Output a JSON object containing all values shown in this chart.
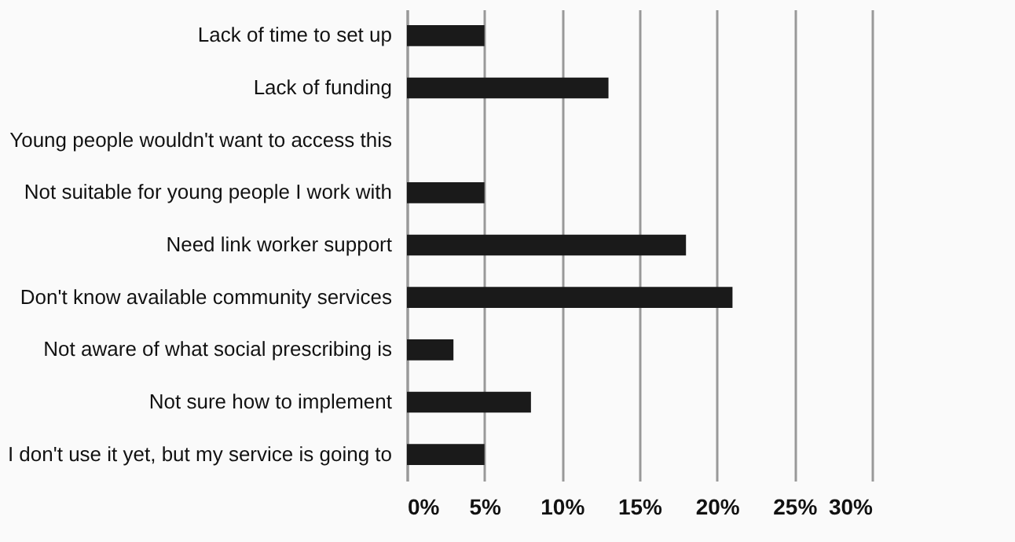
{
  "chart_data": {
    "type": "bar",
    "orientation": "horizontal",
    "categories": [
      "Lack of time to set up",
      "Lack of funding",
      "Young people wouldn't want to access this",
      "Not suitable for young people I work with",
      "Need link worker support",
      "Don't know available community services ",
      "Not aware of what social prescribing is",
      "Not sure how to implement ",
      "I don't use it yet, but my service is going to"
    ],
    "values": [
      5,
      13,
      0,
      5,
      18,
      21,
      3,
      8,
      5
    ],
    "color": "#1a1a1a",
    "xlim": [
      0,
      30
    ],
    "xticks": [
      {
        "value": 0,
        "label": "0%"
      },
      {
        "value": 5,
        "label": "5%"
      },
      {
        "value": 10,
        "label": "10%"
      },
      {
        "value": 15,
        "label": "15%"
      },
      {
        "value": 20,
        "label": "20%"
      },
      {
        "value": 25,
        "label": "25%"
      },
      {
        "value": 30,
        "label": "30%"
      }
    ],
    "grid": "x"
  }
}
